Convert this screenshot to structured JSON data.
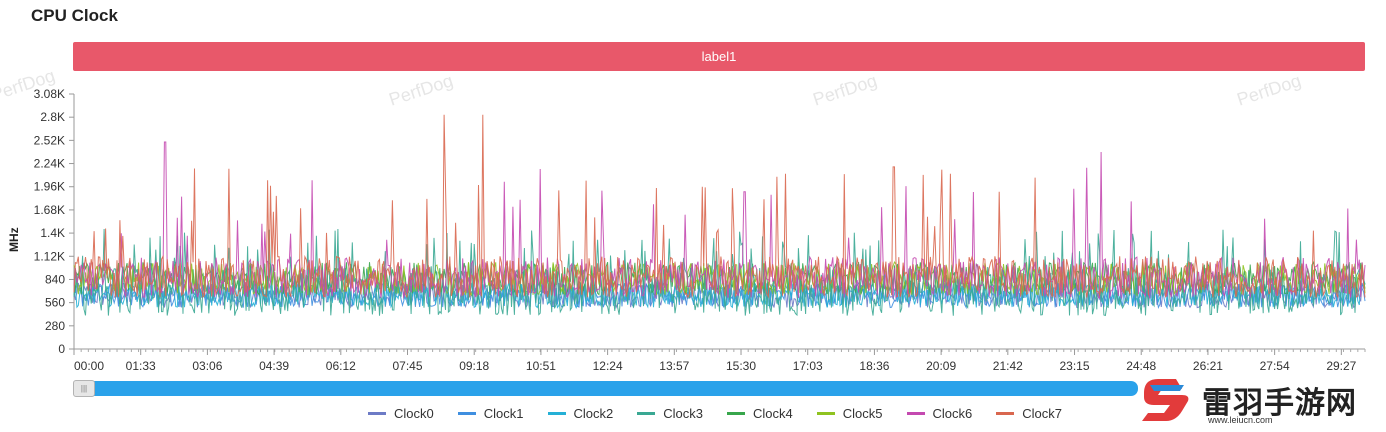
{
  "page": {
    "title": "CPU Clock"
  },
  "label_bar": {
    "text": "label1"
  },
  "watermarks": [
    "PerfDog",
    "PerfDog",
    "PerfDog",
    "PerfDog"
  ],
  "brand": {
    "name": "雷羽手游网",
    "url": "www.leiucn.com"
  },
  "colors": {
    "label_bar": "#e8586a",
    "slider": "#2aa2ea",
    "Clock0": "#6d7bc6",
    "Clock1": "#3f8fe0",
    "Clock2": "#25b0d6",
    "Clock3": "#3aa893",
    "Clock4": "#38a64c",
    "Clock5": "#8fc320",
    "Clock6": "#c449b0",
    "Clock7": "#d9674f"
  },
  "chart_data": {
    "type": "line",
    "title": "CPU Clock",
    "ylabel": "MHz",
    "xlabel": "",
    "ylim": [
      0,
      3080
    ],
    "y_ticks": [
      0,
      280,
      560,
      840,
      1120,
      1400,
      1680,
      1960,
      2240,
      2520,
      2800,
      3080
    ],
    "y_tick_labels": [
      "0",
      "280",
      "560",
      "840",
      "1.12K",
      "1.4K",
      "1.68K",
      "1.96K",
      "2.24K",
      "2.52K",
      "2.8K",
      "3.08K"
    ],
    "x_range_seconds": [
      0,
      1800
    ],
    "x_ticks_seconds": [
      0,
      93,
      186,
      279,
      372,
      465,
      558,
      651,
      744,
      837,
      930,
      1023,
      1116,
      1209,
      1302,
      1395,
      1488,
      1581,
      1674,
      1767
    ],
    "x_tick_labels": [
      "00:00",
      "01:33",
      "03:06",
      "04:39",
      "06:12",
      "07:45",
      "09:18",
      "10:51",
      "12:24",
      "13:57",
      "15:30",
      "17:03",
      "18:36",
      "20:09",
      "21:42",
      "23:15",
      "24:48",
      "26:21",
      "27:54",
      "29:27"
    ],
    "series": [
      {
        "name": "Clock0",
        "baseline": 650,
        "spread": 150
      },
      {
        "name": "Clock1",
        "baseline": 650,
        "spread": 150
      },
      {
        "name": "Clock2",
        "baseline": 650,
        "spread": 150
      },
      {
        "name": "Clock3",
        "baseline": 700,
        "spread": 300,
        "range_observed": [
          340,
          1450
        ]
      },
      {
        "name": "Clock4",
        "baseline": 850,
        "spread": 200
      },
      {
        "name": "Clock5",
        "baseline": 850,
        "spread": 200
      },
      {
        "name": "Clock6",
        "baseline": 860,
        "spread": 250,
        "peaks": [
          {
            "t": 128,
            "v": 2500
          },
          {
            "t": 935,
            "v": 1900
          },
          {
            "t": 1432,
            "v": 2380
          }
        ]
      },
      {
        "name": "Clock7",
        "baseline": 870,
        "spread": 250,
        "peaks": [
          {
            "t": 516,
            "v": 2830
          },
          {
            "t": 570,
            "v": 2830
          },
          {
            "t": 1143,
            "v": 2200
          }
        ]
      }
    ],
    "legend": [
      "Clock0",
      "Clock1",
      "Clock2",
      "Clock3",
      "Clock4",
      "Clock5",
      "Clock6",
      "Clock7"
    ],
    "legend_position": "bottom"
  }
}
